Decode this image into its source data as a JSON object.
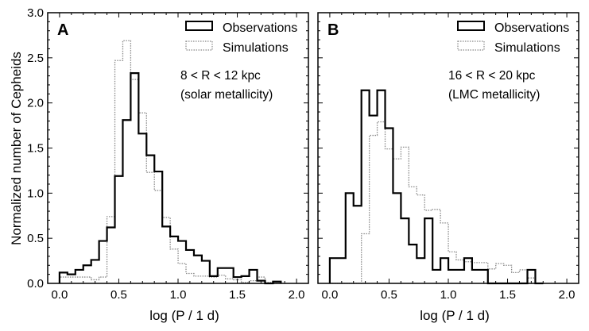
{
  "ylabel": "Normalized number of Cepheids",
  "chart_data": [
    {
      "type": "histogram",
      "panel_label": "A",
      "xlabel": "log (P / 1 d)",
      "xlim": [
        -0.1,
        2.1
      ],
      "ylim": [
        0,
        3.0
      ],
      "xticks": [
        "0.0",
        "0.5",
        "1.0",
        "1.5",
        "2.0"
      ],
      "yticks": [
        "0.0",
        "0.5",
        "1.0",
        "1.5",
        "2.0",
        "2.5",
        "3.0"
      ],
      "annotation": [
        "8 < R < 12 kpc",
        "(solar metallicity)"
      ],
      "legend": "top-right",
      "bin_start": 0.0,
      "bin_width": 0.0667,
      "series": [
        {
          "name": "Observations",
          "style": "solid",
          "color": "#000000",
          "values": [
            0.12,
            0.1,
            0.15,
            0.2,
            0.26,
            0.47,
            0.62,
            1.19,
            1.81,
            2.33,
            1.66,
            1.42,
            1.24,
            0.63,
            0.52,
            0.47,
            0.37,
            0.31,
            0.25,
            0.08,
            0.17,
            0.17,
            0.07,
            0.08,
            0.15,
            0.03,
            0.0,
            0.02
          ]
        },
        {
          "name": "Simulations",
          "style": "dotted",
          "color": "#888888",
          "values": [
            0.07,
            0.07,
            0.07,
            0.07,
            0.04,
            0.07,
            0.74,
            2.47,
            2.69,
            2.26,
            1.89,
            1.23,
            1.03,
            0.73,
            0.38,
            0.22,
            0.11,
            0.08,
            0.08,
            0.07,
            0.09,
            0.05,
            0.04,
            0.01,
            0.03,
            0.07,
            0.01,
            0.0
          ]
        }
      ]
    },
    {
      "type": "histogram",
      "panel_label": "B",
      "xlabel": "log (P / 1 d)",
      "xlim": [
        -0.1,
        2.1
      ],
      "ylim": [
        0,
        3.0
      ],
      "xticks": [
        "0.0",
        "0.5",
        "1.0",
        "1.5",
        "2.0"
      ],
      "annotation": [
        "16 < R < 20 kpc",
        "(LMC metallicity)"
      ],
      "legend": "top-right",
      "bin_start": 0.0,
      "bin_width": 0.0667,
      "series": [
        {
          "name": "Observations",
          "style": "solid",
          "color": "#000000",
          "values": [
            0.28,
            0.28,
            1.0,
            0.86,
            2.14,
            1.86,
            2.14,
            1.72,
            1.0,
            0.72,
            0.43,
            0.28,
            0.72,
            0.15,
            0.28,
            0.15,
            0.15,
            0.28,
            0.15,
            0.15,
            0,
            0,
            0,
            0,
            0,
            0.15,
            0
          ]
        },
        {
          "name": "Simulations",
          "style": "dotted",
          "color": "#888888",
          "values": [
            0,
            0,
            0,
            0,
            0.55,
            1.64,
            1.79,
            1.49,
            1.38,
            1.51,
            1.07,
            0.98,
            0.81,
            0.82,
            0.67,
            0.35,
            0.26,
            0.24,
            0.23,
            0.23,
            0.16,
            0.22,
            0.2,
            0.12,
            0.15,
            0.06,
            0
          ]
        }
      ]
    }
  ]
}
